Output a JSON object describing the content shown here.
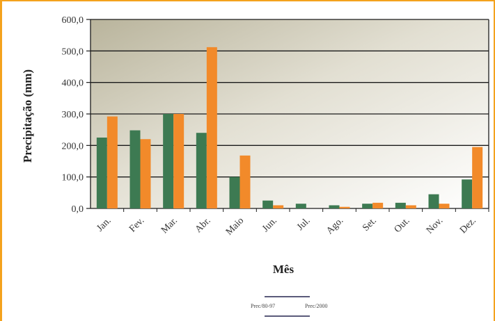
{
  "chart_data": {
    "type": "bar",
    "xlabel": "Mês",
    "ylabel": "Precipitação (mm)",
    "ylim": [
      0,
      600
    ],
    "yticks": [
      "0,0",
      "100,0",
      "200,0",
      "300,0",
      "400,0",
      "500,0",
      "600,0"
    ],
    "ytick_values": [
      0,
      100,
      200,
      300,
      400,
      500,
      600
    ],
    "categories": [
      "Jan.",
      "Fev.",
      "Mar.",
      "Abr.",
      "Maio",
      "Jun.",
      "Jul.",
      "Ago.",
      "Set.",
      "Out.",
      "Nov.",
      "Dez."
    ],
    "series": [
      {
        "name": "Prec/80-97",
        "color": "#3d7a52",
        "values": [
          225,
          248,
          300,
          240,
          100,
          25,
          15,
          10,
          15,
          18,
          45,
          92
        ]
      },
      {
        "name": "Prec/2000",
        "color": "#f28a2a",
        "values": [
          292,
          220,
          300,
          512,
          168,
          10,
          0,
          5,
          18,
          10,
          15,
          195
        ]
      }
    ],
    "grid": true,
    "legend_position": "bottom"
  }
}
